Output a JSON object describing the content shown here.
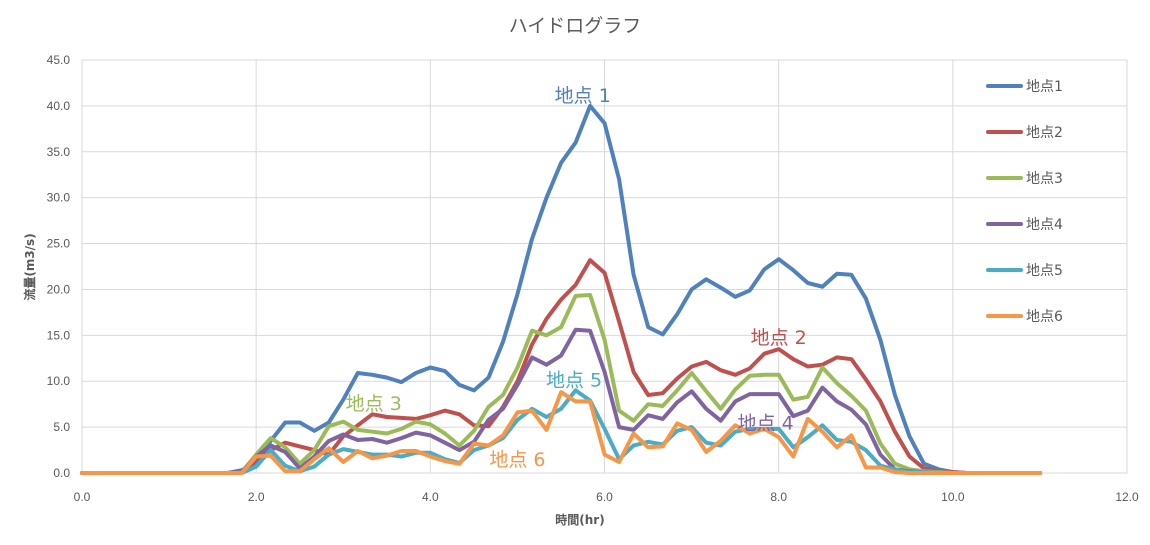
{
  "chart_data": {
    "type": "line",
    "title": "ハイドログラフ",
    "xlabel": "時間(hr)",
    "ylabel": "流量(m3/s)",
    "xlim": [
      0,
      12
    ],
    "ylim": [
      0,
      45
    ],
    "x_ticks": [
      "0.0",
      "2.0",
      "4.0",
      "6.0",
      "8.0",
      "10.0",
      "12.0"
    ],
    "y_ticks": [
      "0.0",
      "5.0",
      "10.0",
      "15.0",
      "20.0",
      "25.0",
      "30.0",
      "35.0",
      "40.0",
      "45.0"
    ],
    "grid": true,
    "legend_position": "right",
    "x_step_hr": 0.1667,
    "x_start": 0,
    "series": [
      {
        "name": "地点1",
        "color": "#4f81bd",
        "values": [
          0,
          0,
          0,
          0,
          0,
          0,
          0,
          0,
          0,
          0,
          0,
          0.3,
          1.0,
          3.5,
          5.5,
          5.5,
          4.6,
          5.5,
          8.0,
          10.9,
          10.7,
          10.4,
          9.9,
          10.9,
          11.5,
          11.1,
          9.6,
          9.0,
          10.4,
          14.3,
          19.5,
          25.5,
          30.0,
          33.8,
          36.0,
          40.0,
          38.1,
          32.0,
          21.6,
          15.9,
          15.1,
          17.3,
          20.0,
          21.1,
          20.2,
          19.2,
          19.9,
          22.2,
          23.3,
          22.1,
          20.7,
          20.3,
          21.7,
          21.6,
          19.0,
          14.5,
          8.5,
          4.0,
          1.0,
          0.4,
          0.1,
          0,
          0,
          0,
          0,
          0,
          0
        ]
      },
      {
        "name": "地点2",
        "color": "#c0504d",
        "values": [
          0,
          0,
          0,
          0,
          0,
          0,
          0,
          0,
          0,
          0,
          0,
          0.1,
          1.5,
          2.5,
          3.3,
          2.9,
          2.5,
          2.0,
          4.0,
          5.2,
          6.4,
          6.1,
          6.0,
          5.9,
          6.3,
          6.8,
          6.4,
          5.2,
          5.1,
          7.2,
          10.0,
          14.0,
          16.8,
          18.9,
          20.5,
          23.2,
          21.8,
          16.5,
          11.0,
          8.5,
          8.7,
          10.3,
          11.6,
          12.1,
          11.2,
          10.7,
          11.4,
          13.0,
          13.5,
          12.4,
          11.6,
          11.8,
          12.6,
          12.4,
          10.2,
          7.8,
          4.5,
          1.8,
          0.5,
          0.2,
          0.1,
          0,
          0,
          0,
          0,
          0,
          0
        ]
      },
      {
        "name": "地点3",
        "color": "#9bbb59",
        "values": [
          0,
          0,
          0,
          0,
          0,
          0,
          0,
          0,
          0,
          0,
          0,
          0.1,
          2.0,
          3.8,
          2.8,
          1.0,
          2.5,
          5.1,
          5.6,
          4.7,
          4.5,
          4.3,
          4.8,
          5.6,
          5.3,
          4.3,
          3.0,
          4.6,
          7.2,
          8.5,
          11.5,
          15.5,
          15.0,
          15.9,
          19.3,
          19.4,
          14.5,
          6.8,
          5.7,
          7.5,
          7.3,
          9.0,
          10.9,
          8.9,
          7.0,
          9.1,
          10.6,
          10.7,
          10.7,
          8.0,
          8.3,
          11.5,
          9.8,
          8.4,
          6.8,
          3.2,
          1.0,
          0.4,
          0.2,
          0.1,
          0,
          0,
          0,
          0,
          0,
          0,
          0
        ]
      },
      {
        "name": "地点4",
        "color": "#8064a2",
        "values": [
          0,
          0,
          0,
          0,
          0,
          0,
          0,
          0,
          0,
          0,
          0,
          0.1,
          1.8,
          3.0,
          2.3,
          0.5,
          1.8,
          3.5,
          4.2,
          3.6,
          3.7,
          3.3,
          3.8,
          4.4,
          4.1,
          3.3,
          2.5,
          3.4,
          5.8,
          7.0,
          9.6,
          12.6,
          11.8,
          12.8,
          15.6,
          15.5,
          11.0,
          5.0,
          4.7,
          6.3,
          5.9,
          7.7,
          8.9,
          7.0,
          5.7,
          7.8,
          8.6,
          8.6,
          8.6,
          6.2,
          6.8,
          9.3,
          7.8,
          6.9,
          5.3,
          2.0,
          0.4,
          0.2,
          0.1,
          0,
          0,
          0,
          0,
          0,
          0,
          0,
          0
        ]
      },
      {
        "name": "地点5",
        "color": "#4bacc6",
        "values": [
          0,
          0,
          0,
          0,
          0,
          0,
          0,
          0,
          0,
          0,
          0,
          0,
          0.7,
          2.5,
          0.8,
          0.2,
          0.7,
          2.0,
          2.6,
          2.3,
          2.0,
          2.0,
          1.8,
          2.2,
          2.2,
          1.5,
          1.1,
          2.5,
          3.0,
          3.8,
          5.8,
          7.0,
          6.1,
          7.0,
          9.0,
          7.9,
          4.8,
          1.5,
          3.0,
          3.4,
          3.1,
          4.6,
          5.0,
          3.3,
          3.0,
          4.5,
          4.8,
          4.8,
          4.8,
          2.8,
          3.9,
          5.2,
          3.6,
          3.4,
          2.5,
          0.8,
          0.4,
          0.1,
          0.1,
          0,
          0,
          0,
          0,
          0,
          0,
          0,
          0
        ]
      },
      {
        "name": "地点6",
        "color": "#f79646",
        "values": [
          0,
          0,
          0,
          0,
          0,
          0,
          0,
          0,
          0,
          0,
          0,
          0,
          1.8,
          1.9,
          0.2,
          0.2,
          1.5,
          2.7,
          1.2,
          2.4,
          1.6,
          1.9,
          2.4,
          2.4,
          1.8,
          1.3,
          1.0,
          3.2,
          3.0,
          4.1,
          6.6,
          6.8,
          4.7,
          8.8,
          7.8,
          7.8,
          2.0,
          1.2,
          4.3,
          2.8,
          2.9,
          5.4,
          4.7,
          2.3,
          3.5,
          5.2,
          4.3,
          4.8,
          3.9,
          1.8,
          5.9,
          4.5,
          2.8,
          4.1,
          0.6,
          0.6,
          0.1,
          0,
          0,
          0,
          0,
          0,
          0,
          0,
          0,
          0,
          0
        ]
      }
    ],
    "annotations": [
      {
        "text": "地点 1",
        "series": 0,
        "x": 5.75,
        "y": 41.2
      },
      {
        "text": "地点 2",
        "series": 1,
        "x": 8.0,
        "y": 14.8
      },
      {
        "text": "地点 3",
        "series": 2,
        "x": 3.35,
        "y": 7.6
      },
      {
        "text": "地点 4",
        "series": 3,
        "x": 7.85,
        "y": 5.5
      },
      {
        "text": "地点 5",
        "series": 4,
        "x": 5.65,
        "y": 10.2
      },
      {
        "text": "地点 6",
        "series": 5,
        "x": 5.0,
        "y": 1.5
      }
    ]
  }
}
